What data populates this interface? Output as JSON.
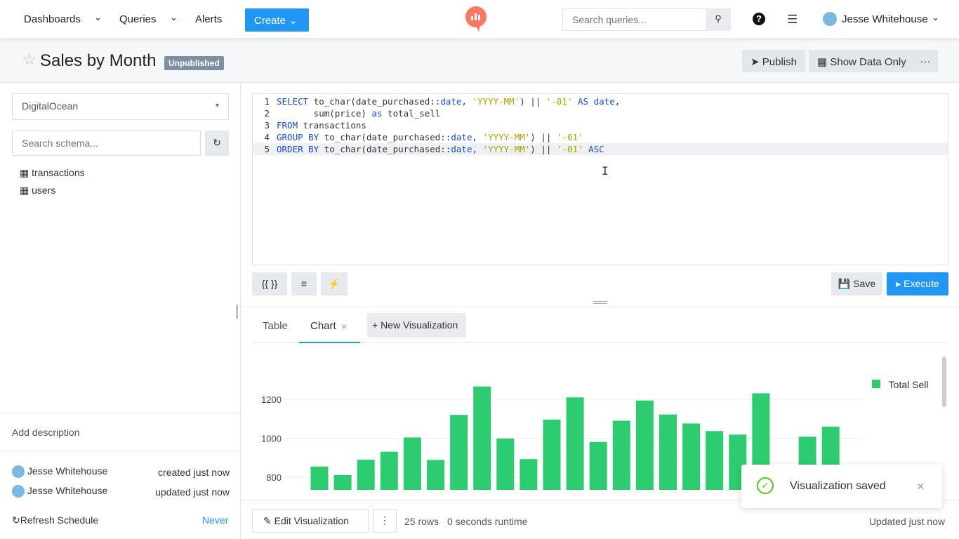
{
  "nav": {
    "dashboards": "Dashboards",
    "queries": "Queries",
    "alerts": "Alerts",
    "create": "Create",
    "search_placeholder": "Search queries...",
    "user": "Jesse Whitehouse",
    "logo_color": "#ff7964"
  },
  "query": {
    "title": "Sales by Month",
    "status": "Unpublished",
    "publish": "Publish",
    "show_data_only": "Show Data Only",
    "more": "···"
  },
  "schema": {
    "datasource": "DigitalOcean",
    "search_placeholder": "Search schema...",
    "tables": [
      "transactions",
      "users"
    ]
  },
  "sidebar": {
    "add_description": "Add description",
    "history": [
      {
        "user": "Jesse Whitehouse",
        "action": "created just now"
      },
      {
        "user": "Jesse Whitehouse",
        "action": "updated just now"
      }
    ],
    "refresh_label": "Refresh Schedule",
    "refresh_value": "Never"
  },
  "editor": {
    "lines": [
      [
        [
          "kw",
          "SELECT "
        ],
        [
          "id",
          "to_char(date_purchased::"
        ],
        [
          "ty",
          "date"
        ],
        [
          "id",
          ", "
        ],
        [
          "str",
          "'YYYY-MM'"
        ],
        [
          "id",
          ") || "
        ],
        [
          "str",
          "'-01'"
        ],
        [
          "kw",
          " AS "
        ],
        [
          "ty",
          "date"
        ],
        [
          "id",
          ","
        ]
      ],
      [
        [
          "id",
          "       sum(price) "
        ],
        [
          "kw",
          "as"
        ],
        [
          "id",
          " total_sell"
        ]
      ],
      [
        [
          "kw",
          "FROM"
        ],
        [
          "id",
          " transactions"
        ]
      ],
      [
        [
          "kw",
          "GROUP BY"
        ],
        [
          "id",
          " to_char(date_purchased::"
        ],
        [
          "ty",
          "date"
        ],
        [
          "id",
          ", "
        ],
        [
          "str",
          "'YYYY-MM'"
        ],
        [
          "id",
          ") || "
        ],
        [
          "str",
          "'-01'"
        ]
      ],
      [
        [
          "kw",
          "ORDER BY"
        ],
        [
          "id",
          " to_char(date_purchased::"
        ],
        [
          "ty",
          "date"
        ],
        [
          "id",
          ", "
        ],
        [
          "str",
          "'YYYY-MM'"
        ],
        [
          "id",
          ") || "
        ],
        [
          "str",
          "'-01'"
        ],
        [
          "kw",
          " ASC"
        ]
      ]
    ],
    "format_label": "{{ }}",
    "save": "Save",
    "execute": "Execute"
  },
  "tabs": {
    "table": "Table",
    "chart": "Chart",
    "new": "+ New Visualization"
  },
  "chart_data": {
    "type": "bar",
    "series": [
      {
        "name": "Total Sell",
        "color": "#2ecc71",
        "values": [
          855,
          811,
          890,
          931,
          1004,
          889,
          1120,
          1266,
          999,
          893,
          1096,
          1210,
          981,
          1090,
          1194,
          1122,
          1076,
          1037,
          1019,
          1231,
          null,
          1008,
          1060
        ]
      }
    ],
    "yticks": [
      800,
      1000,
      1200
    ],
    "legend": "top-right",
    "grid": true
  },
  "footer": {
    "edit": "Edit Visualization",
    "rows": "25 rows",
    "runtime": "0 seconds runtime",
    "updated": "Updated just now"
  },
  "toast": {
    "message": "Visualization saved"
  }
}
